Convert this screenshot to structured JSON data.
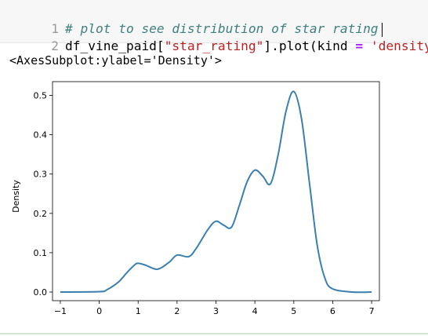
{
  "code": {
    "line1": {
      "number": "1",
      "comment": "# plot to see distribution of star rating"
    },
    "line2": {
      "number": "2",
      "prefix": "df_vine_paid[",
      "string1": "\"star_rating\"",
      "middle": "].plot(kind ",
      "op": "=",
      "space": " ",
      "string2": "'density'",
      "suffix": ")"
    }
  },
  "output": {
    "repr": "<AxesSubplot:ylabel='Density'>"
  },
  "chart_data": {
    "type": "line",
    "title": "",
    "xlabel": "",
    "ylabel": "Density",
    "xlim": [
      -1.2,
      7.2
    ],
    "ylim": [
      -0.022,
      0.535
    ],
    "xticks": [
      "−1",
      "0",
      "1",
      "2",
      "3",
      "4",
      "5",
      "6",
      "7"
    ],
    "yticks": [
      "0.0",
      "0.1",
      "0.2",
      "0.3",
      "0.4",
      "0.5"
    ],
    "grid": false,
    "color": "#3a7fb0",
    "x": [
      -1.0,
      0.0,
      0.2,
      0.5,
      0.7,
      0.9,
      1.0,
      1.2,
      1.5,
      1.8,
      2.0,
      2.3,
      2.5,
      2.8,
      3.0,
      3.2,
      3.4,
      3.6,
      3.8,
      4.0,
      4.2,
      4.4,
      4.6,
      4.8,
      5.0,
      5.2,
      5.4,
      5.6,
      5.8,
      6.0,
      6.5,
      7.0
    ],
    "y": [
      0.0,
      0.001,
      0.006,
      0.026,
      0.048,
      0.068,
      0.073,
      0.068,
      0.058,
      0.076,
      0.094,
      0.09,
      0.112,
      0.16,
      0.18,
      0.17,
      0.165,
      0.22,
      0.28,
      0.31,
      0.295,
      0.275,
      0.35,
      0.46,
      0.51,
      0.44,
      0.28,
      0.12,
      0.035,
      0.008,
      0.0,
      0.0
    ]
  }
}
